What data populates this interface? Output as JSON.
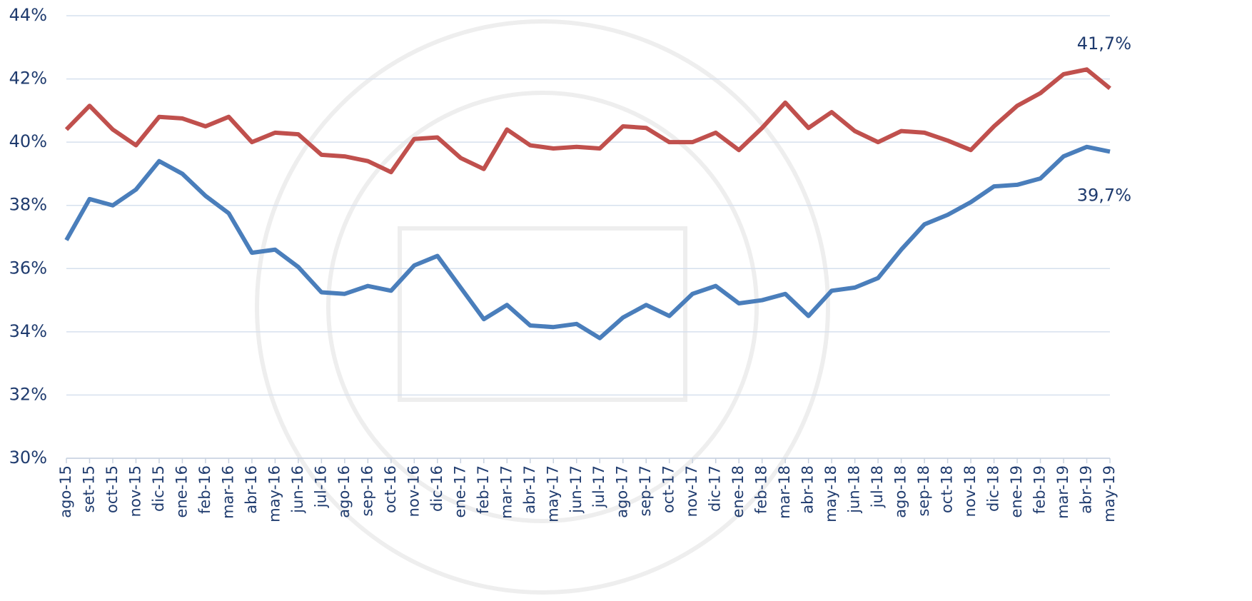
{
  "chart_data": {
    "type": "line",
    "categories": [
      "ago-15",
      "set-15",
      "oct-15",
      "nov-15",
      "dic-15",
      "ene-16",
      "feb-16",
      "mar-16",
      "abr-16",
      "may-16",
      "jun-16",
      "jul-16",
      "ago-16",
      "sep-16",
      "oct-16",
      "nov-16",
      "dic-16",
      "ene-17",
      "feb-17",
      "mar-17",
      "abr-17",
      "may-17",
      "jun-17",
      "jul-17",
      "ago-17",
      "sep-17",
      "oct-17",
      "nov-17",
      "dic-17",
      "ene-18",
      "feb-18",
      "mar-18",
      "abr-18",
      "may-18",
      "jun-18",
      "jul-18",
      "ago-18",
      "sep-18",
      "oct-18",
      "nov-18",
      "dic-18",
      "ene-19",
      "feb-19",
      "mar-19",
      "abr-19",
      "may-19"
    ],
    "series": [
      {
        "color": "#c0504d",
        "values": [
          40.4,
          41.15,
          40.4,
          39.9,
          40.8,
          40.75,
          40.5,
          40.8,
          40.0,
          40.3,
          40.25,
          39.6,
          39.55,
          39.4,
          39.05,
          40.1,
          40.15,
          39.5,
          39.15,
          40.4,
          39.9,
          39.8,
          39.85,
          39.8,
          40.5,
          40.45,
          40.0,
          40.0,
          40.3,
          39.75,
          40.45,
          41.25,
          40.45,
          40.95,
          40.35,
          40.0,
          40.35,
          40.3,
          40.05,
          39.75,
          40.5,
          41.15,
          41.55,
          42.15,
          42.3,
          41.7
        ],
        "value_labels": [
          null,
          null,
          null,
          null,
          null,
          null,
          null,
          null,
          null,
          null,
          null,
          null,
          null,
          null,
          null,
          null,
          null,
          null,
          null,
          null,
          null,
          null,
          null,
          null,
          null,
          null,
          null,
          null,
          null,
          null,
          null,
          null,
          null,
          null,
          null,
          null,
          null,
          null,
          null,
          null,
          null,
          null,
          null,
          null,
          null,
          "41,7%"
        ]
      },
      {
        "color": "#4a7ebb",
        "values": [
          36.9,
          38.2,
          38.0,
          38.5,
          39.4,
          39.0,
          38.3,
          37.75,
          36.5,
          36.6,
          36.05,
          35.25,
          35.2,
          35.45,
          35.3,
          36.1,
          36.4,
          35.4,
          34.4,
          34.85,
          34.2,
          34.15,
          34.25,
          33.8,
          34.45,
          34.85,
          34.5,
          35.2,
          35.45,
          34.9,
          35.0,
          35.2,
          34.5,
          35.3,
          35.4,
          35.7,
          36.6,
          37.4,
          37.7,
          38.1,
          38.6,
          38.65,
          38.85,
          39.55,
          39.85,
          39.7
        ],
        "value_labels": [
          null,
          null,
          null,
          null,
          null,
          null,
          null,
          null,
          null,
          null,
          null,
          null,
          null,
          null,
          null,
          null,
          null,
          null,
          null,
          null,
          null,
          null,
          null,
          null,
          null,
          null,
          null,
          null,
          null,
          null,
          null,
          null,
          null,
          null,
          null,
          null,
          null,
          null,
          null,
          null,
          null,
          null,
          null,
          null,
          null,
          "39,7%"
        ]
      }
    ],
    "ylim": [
      30,
      44
    ],
    "yticks": [
      {
        "value": 30,
        "label": "30%"
      },
      {
        "value": 32,
        "label": "32%"
      },
      {
        "value": 34,
        "label": "34%"
      },
      {
        "value": 36,
        "label": "36%"
      },
      {
        "value": 38,
        "label": "38%"
      },
      {
        "value": 40,
        "label": "40%"
      },
      {
        "value": 42,
        "label": "42%"
      },
      {
        "value": 44,
        "label": "44%"
      }
    ],
    "grid": true
  }
}
